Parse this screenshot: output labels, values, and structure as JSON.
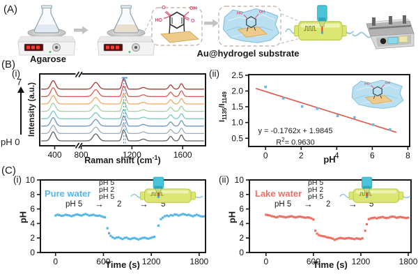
{
  "figure": {
    "panelA": {
      "label": "(A)",
      "agarose_label": "Agarose",
      "substrate_label": "Au@hydrogel substrate"
    },
    "panelB": {
      "label": "(B)",
      "sub_i": "(i)",
      "sub_ii": "(ii)"
    },
    "panelC": {
      "label": "(C)",
      "sub_i": "(i)",
      "sub_ii": "(ii)"
    },
    "ui": {
      "arrow_right": "→"
    }
  },
  "colors": {
    "axis": "#1a1a1a",
    "accent_blue": "#56b6e8",
    "accent_salmon": "#ee6f64",
    "fit_line_red": "#e0544a",
    "calib_point_blue": "#6fb6e0",
    "marker_dash_blue": "#5b9bd0",
    "chip_body": "#dce773",
    "chip_stroke": "#b9c94f",
    "objective_cyan": "#49c5da",
    "objective_dark": "#2da5bb",
    "beam_red": "#e23b28",
    "gel_fill": "#b9dff1",
    "gel_stroke": "#82c0e0",
    "gold": "#eecb8a",
    "gold_stroke": "#d2a958",
    "pink": "#e04f72",
    "tube_blue": "#8ec4de",
    "liquid_agarose": "#ccdce8",
    "liquid_gold_sol": "#dcc49a"
  },
  "chart_data": [
    {
      "id": "raman_spectra",
      "type": "line",
      "ylabel": "Intensity (a.u.)",
      "xlabel_pre": "Raman shift (cm",
      "xlabel_sup": "-1",
      "xlabel_post": ")",
      "x_ticks": [
        400,
        800,
        1200,
        1600
      ],
      "x_tick_labels": [
        "400",
        "800",
        "1200",
        "1600"
      ],
      "axis_break_cm1": [
        560,
        780
      ],
      "x_segments": [
        {
          "range": [
            300,
            560
          ],
          "frac": [
            0,
            0.235
          ]
        },
        {
          "range": [
            780,
            1780
          ],
          "frac": [
            0.235,
            1
          ]
        }
      ],
      "marked_peak_pair_cm1": [
        1135,
        1149
      ],
      "peak_centers_cm1": [
        390,
        915,
        1132,
        1152,
        1290,
        1505,
        1590
      ],
      "peak_rel_heights": [
        1.0,
        0.78,
        1.15,
        0.55,
        0.2,
        0.5,
        0.65
      ],
      "peak_widths_cm1": [
        16,
        22,
        11,
        9,
        18,
        14,
        13
      ],
      "series": [
        {
          "label": "pH 0",
          "color": "#606060",
          "scale": 1.08
        },
        {
          "label": "pH 1",
          "color": "#9fadb9",
          "scale": 0.98
        },
        {
          "label": "pH 2",
          "color": "#6e96be",
          "scale": 1.02
        },
        {
          "label": "pH 3",
          "color": "#79c8c1",
          "scale": 0.92
        },
        {
          "label": "pH 4",
          "color": "#9cd39b",
          "scale": 0.97
        },
        {
          "label": "pH 5",
          "color": "#f2a763",
          "scale": 1.0
        },
        {
          "label": "pH 6",
          "color": "#d95b4f",
          "scale": 1.05
        },
        {
          "label": "pH 7",
          "color": "#aa3a31",
          "scale": 1.02
        }
      ],
      "annotations": {
        "ph_top": "7",
        "ph_bottom": "pH 0"
      }
    },
    {
      "id": "calibration",
      "type": "scatter",
      "xlabel": "pH",
      "ylabel_parts": {
        "p1": "I",
        "s1": "1135",
        "p2": "/I",
        "s2": "1149"
      },
      "xlim": [
        -0.95,
        8.1
      ],
      "ylim": [
        0.24,
        2.52
      ],
      "x_ticks": [
        0,
        2,
        4,
        6,
        8
      ],
      "x_tick_labels": [
        "0",
        "2",
        "4",
        "6",
        "8"
      ],
      "y_ticks": [
        0.5,
        1.0,
        1.5,
        2.0,
        2.5
      ],
      "y_tick_labels": [
        "0.5",
        "1.0",
        "1.5",
        "2.0",
        "2.5"
      ],
      "points": [
        [
          0,
          2.13
        ],
        [
          1,
          1.77
        ],
        [
          2.05,
          1.51
        ],
        [
          2.9,
          1.44
        ],
        [
          4.05,
          1.21
        ],
        [
          5,
          1.16
        ],
        [
          6.05,
          0.93
        ],
        [
          7,
          0.78
        ]
      ],
      "fit": {
        "equation": "y = -0.1762x + 1.9845",
        "slope": -0.1762,
        "intercept": 1.9845,
        "r2_pre": "R",
        "r2_sup": "2",
        "r2_rest": "=  0.9630",
        "r_squared": 0.963,
        "x_range": [
          -0.55,
          7.35
        ]
      }
    },
    {
      "id": "pure_water",
      "type": "scatter",
      "label": "Pure water",
      "xlabel": "Time (s)",
      "ylabel": "pH",
      "xlim": [
        -190,
        1880
      ],
      "ylim": [
        0,
        10
      ],
      "x_ticks": [
        0,
        600,
        1200,
        1800
      ],
      "x_tick_labels": [
        "0",
        "600",
        "1200",
        "1800"
      ],
      "y_ticks": [
        0,
        2,
        4,
        6,
        8,
        10
      ],
      "y_tick_labels": [
        "0",
        "2",
        "4",
        "6",
        "8",
        "10"
      ],
      "annotations": {
        "stack": [
          "pH 5",
          "pH 2",
          "pH 5"
        ],
        "seq_start": "pH 5",
        "seq_mid": "2",
        "seq_end": "5"
      },
      "points": [
        [
          0,
          5.1
        ],
        [
          25,
          5.2
        ],
        [
          50,
          5.15
        ],
        [
          75,
          5.05
        ],
        [
          100,
          5.1
        ],
        [
          125,
          5.2
        ],
        [
          150,
          5.15
        ],
        [
          175,
          5.1
        ],
        [
          200,
          5.0
        ],
        [
          225,
          5.1
        ],
        [
          250,
          5.2
        ],
        [
          275,
          5.25
        ],
        [
          300,
          5.15
        ],
        [
          325,
          5.1
        ],
        [
          350,
          5.2
        ],
        [
          375,
          5.3
        ],
        [
          400,
          5.2
        ],
        [
          425,
          5.1
        ],
        [
          450,
          5.15
        ],
        [
          475,
          5.2
        ],
        [
          500,
          5.1
        ],
        [
          525,
          5.05
        ],
        [
          550,
          5.1
        ],
        [
          575,
          5.0
        ],
        [
          600,
          4.9
        ],
        [
          620,
          4.85
        ],
        [
          650,
          3.35
        ],
        [
          670,
          2.65
        ],
        [
          690,
          2.3
        ],
        [
          715,
          2.1
        ],
        [
          740,
          1.95
        ],
        [
          765,
          2.05
        ],
        [
          790,
          2.1
        ],
        [
          815,
          1.95
        ],
        [
          840,
          1.85
        ],
        [
          865,
          2.0
        ],
        [
          890,
          2.05
        ],
        [
          915,
          1.9
        ],
        [
          940,
          1.85
        ],
        [
          965,
          1.95
        ],
        [
          990,
          2.0
        ],
        [
          1015,
          1.9
        ],
        [
          1040,
          1.8
        ],
        [
          1065,
          1.9
        ],
        [
          1090,
          2.0
        ],
        [
          1115,
          2.05
        ],
        [
          1140,
          1.95
        ],
        [
          1165,
          1.9
        ],
        [
          1190,
          2.0
        ],
        [
          1215,
          2.1
        ],
        [
          1240,
          2.15
        ],
        [
          1290,
          3.7
        ],
        [
          1320,
          4.6
        ],
        [
          1345,
          4.8
        ],
        [
          1370,
          5.0
        ],
        [
          1395,
          5.1
        ],
        [
          1420,
          5.0
        ],
        [
          1445,
          5.15
        ],
        [
          1470,
          5.1
        ],
        [
          1495,
          5.25
        ],
        [
          1520,
          5.2
        ],
        [
          1545,
          5.1
        ],
        [
          1570,
          5.2
        ],
        [
          1595,
          5.3
        ],
        [
          1620,
          5.25
        ],
        [
          1645,
          5.15
        ],
        [
          1670,
          5.2
        ],
        [
          1695,
          5.1
        ],
        [
          1720,
          5.0
        ],
        [
          1745,
          5.1
        ],
        [
          1770,
          5.2
        ],
        [
          1795,
          5.1
        ],
        [
          1820,
          5.0
        ],
        [
          1845,
          4.95
        ],
        [
          1870,
          5.0
        ]
      ]
    },
    {
      "id": "lake_water",
      "type": "scatter",
      "label": "Lake water",
      "xlabel": "Time (s)",
      "ylabel": "pH",
      "xlim": [
        -210,
        1835
      ],
      "ylim": [
        0,
        10
      ],
      "x_ticks": [
        0,
        600,
        1200,
        1800
      ],
      "x_tick_labels": [
        "0",
        "600",
        "1200",
        "1800"
      ],
      "y_ticks": [
        0,
        2,
        4,
        6,
        8,
        10
      ],
      "y_tick_labels": [
        "0",
        "2",
        "4",
        "6",
        "8",
        "10"
      ],
      "annotations": {
        "stack": [
          "pH 5",
          "pH 2",
          "pH 5"
        ],
        "seq_start": "pH 5",
        "seq_mid": "2",
        "seq_end": "5"
      },
      "points": [
        [
          0,
          5.2
        ],
        [
          25,
          5.15
        ],
        [
          50,
          5.1
        ],
        [
          75,
          5.0
        ],
        [
          100,
          4.95
        ],
        [
          125,
          4.85
        ],
        [
          150,
          4.9
        ],
        [
          175,
          5.0
        ],
        [
          200,
          4.95
        ],
        [
          225,
          4.9
        ],
        [
          250,
          4.85
        ],
        [
          275,
          4.9
        ],
        [
          300,
          4.95
        ],
        [
          325,
          5.0
        ],
        [
          350,
          4.9
        ],
        [
          375,
          4.85
        ],
        [
          400,
          4.9
        ],
        [
          425,
          4.95
        ],
        [
          450,
          4.9
        ],
        [
          475,
          4.85
        ],
        [
          500,
          4.8
        ],
        [
          525,
          4.85
        ],
        [
          550,
          4.8
        ],
        [
          575,
          4.7
        ],
        [
          600,
          4.55
        ],
        [
          625,
          3.0
        ],
        [
          645,
          2.6
        ],
        [
          670,
          2.4
        ],
        [
          695,
          2.3
        ],
        [
          720,
          2.25
        ],
        [
          745,
          2.2
        ],
        [
          770,
          2.1
        ],
        [
          795,
          2.05
        ],
        [
          820,
          2.0
        ],
        [
          845,
          1.9
        ],
        [
          870,
          1.75
        ],
        [
          895,
          1.85
        ],
        [
          920,
          1.95
        ],
        [
          945,
          2.0
        ],
        [
          970,
          1.95
        ],
        [
          995,
          1.9
        ],
        [
          1020,
          1.95
        ],
        [
          1045,
          2.0
        ],
        [
          1070,
          1.95
        ],
        [
          1095,
          1.9
        ],
        [
          1120,
          1.85
        ],
        [
          1145,
          1.95
        ],
        [
          1170,
          1.9
        ],
        [
          1195,
          1.85
        ],
        [
          1220,
          1.95
        ],
        [
          1255,
          3.0
        ],
        [
          1275,
          3.9
        ],
        [
          1300,
          4.6
        ],
        [
          1325,
          4.7
        ],
        [
          1350,
          4.75
        ],
        [
          1375,
          4.8
        ],
        [
          1400,
          4.7
        ],
        [
          1425,
          4.8
        ],
        [
          1450,
          4.85
        ],
        [
          1475,
          4.9
        ],
        [
          1500,
          4.8
        ],
        [
          1525,
          4.75
        ],
        [
          1550,
          4.8
        ],
        [
          1575,
          4.9
        ],
        [
          1600,
          4.95
        ],
        [
          1625,
          4.9
        ],
        [
          1650,
          4.8
        ],
        [
          1675,
          4.85
        ],
        [
          1700,
          4.9
        ],
        [
          1725,
          4.85
        ],
        [
          1750,
          4.8
        ],
        [
          1775,
          4.75
        ],
        [
          1800,
          4.8
        ]
      ]
    }
  ]
}
